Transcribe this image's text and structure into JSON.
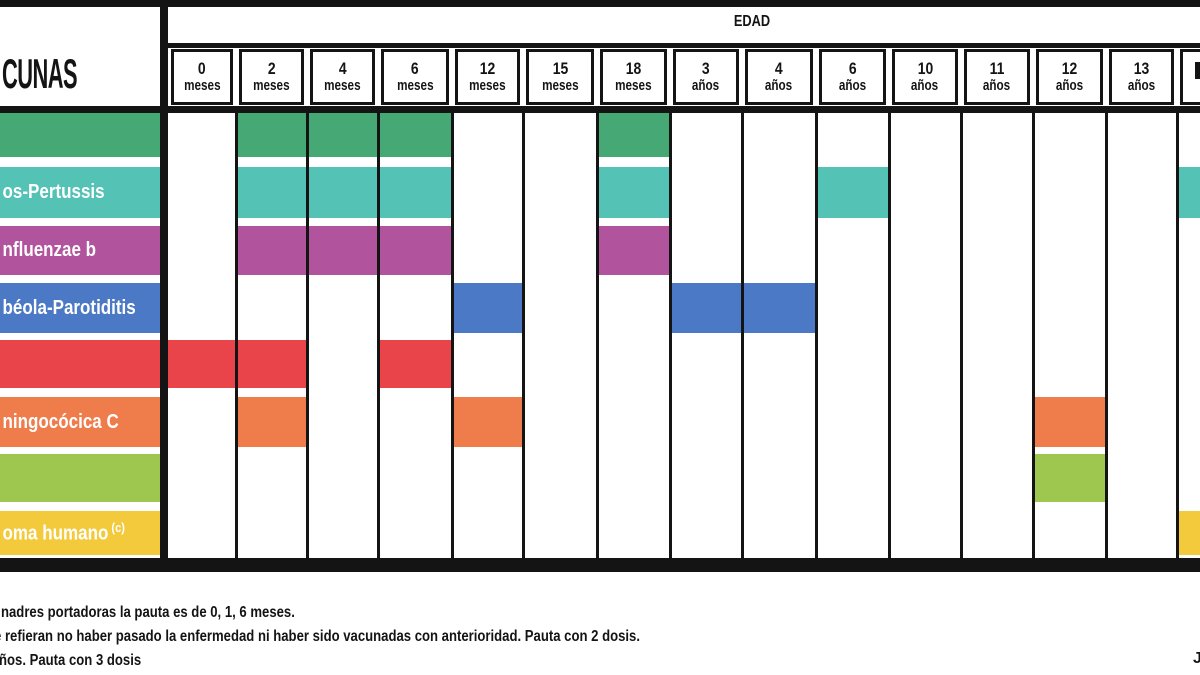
{
  "chart_data": {
    "type": "table",
    "description": "vaccination-schedule-grid",
    "corner_title": "CUNAS",
    "age_axis_title": "EDAD",
    "columns": [
      {
        "value": "0",
        "unit": "meses"
      },
      {
        "value": "2",
        "unit": "meses"
      },
      {
        "value": "4",
        "unit": "meses"
      },
      {
        "value": "6",
        "unit": "meses"
      },
      {
        "value": "12",
        "unit": "meses"
      },
      {
        "value": "15",
        "unit": "meses"
      },
      {
        "value": "18",
        "unit": "meses"
      },
      {
        "value": "3",
        "unit": "años"
      },
      {
        "value": "4",
        "unit": "años"
      },
      {
        "value": "6",
        "unit": "años"
      },
      {
        "value": "10",
        "unit": "años"
      },
      {
        "value": "11",
        "unit": "años"
      },
      {
        "value": "12",
        "unit": "años"
      },
      {
        "value": "13",
        "unit": "años"
      },
      {
        "value": "",
        "unit": ""
      }
    ],
    "rows": [
      {
        "label": "",
        "color": "#46a875",
        "bars": [
          [
            1,
            4
          ],
          [
            6,
            7
          ]
        ]
      },
      {
        "label": "os-Pertussis",
        "color": "#54c2b4",
        "bars": [
          [
            1,
            4
          ],
          [
            6,
            7
          ],
          [
            9,
            10
          ],
          [
            14,
            15
          ]
        ]
      },
      {
        "label": "nfluenzae b",
        "color": "#b2539e",
        "bars": [
          [
            1,
            4
          ],
          [
            6,
            7
          ]
        ]
      },
      {
        "label": "béola-Parotiditis",
        "color": "#4c79c5",
        "bars": [
          [
            4,
            5
          ],
          [
            7,
            9
          ]
        ]
      },
      {
        "label": "",
        "color": "#e8444a",
        "bars": [
          [
            0,
            2
          ],
          [
            3,
            4
          ]
        ]
      },
      {
        "label": "ningocócica C",
        "color": "#ef7c4b",
        "bars": [
          [
            1,
            2
          ],
          [
            4,
            5
          ],
          [
            12,
            13
          ]
        ]
      },
      {
        "label": "",
        "color": "#9dc74e",
        "bars": [
          [
            12,
            13
          ]
        ]
      },
      {
        "label": "oma humano",
        "label_sup": "(c)",
        "color": "#f3ca3b",
        "bars": [
          [
            14,
            15
          ]
        ]
      }
    ]
  },
  "notes": {
    "line1": "nadres portadoras la pauta es de 0, 1,  6 meses.",
    "line2": "e refieran no haber pasado la enfermedad ni haber sido vacunadas con anterioridad. Pauta con 2 dosis.",
    "line3": "ños. Pauta con 3 dosis",
    "credit": "J"
  },
  "colors": {
    "border_black": "#141414",
    "background": "#ffffff",
    "label_text": "#ffffff"
  }
}
